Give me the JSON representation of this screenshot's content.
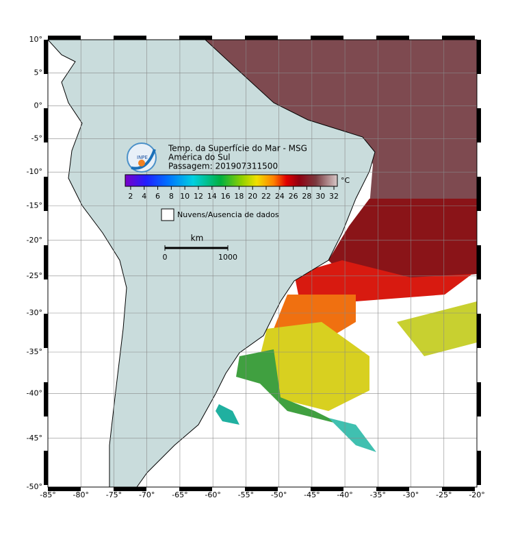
{
  "map": {
    "title_lines": [
      "Temp. da Superfície do Mar - MSG",
      "América do Sul",
      "Passagem: 201907311500"
    ],
    "logo": "INPE",
    "lon_range": [
      -85,
      -20
    ],
    "lat_range": [
      10,
      -50
    ],
    "lon_ticks": [
      {
        "value": -85,
        "label": "-85°"
      },
      {
        "value": -80,
        "label": "-80°"
      },
      {
        "value": -75,
        "label": "-75°"
      },
      {
        "value": -70,
        "label": "-70°"
      },
      {
        "value": -65,
        "label": "-65°"
      },
      {
        "value": -60,
        "label": "-60°"
      },
      {
        "value": -55,
        "label": "-55°"
      },
      {
        "value": -50,
        "label": "-50°"
      },
      {
        "value": -45,
        "label": "-45°"
      },
      {
        "value": -40,
        "label": "-40°"
      },
      {
        "value": -35,
        "label": "-35°"
      },
      {
        "value": -30,
        "label": "-30°"
      },
      {
        "value": -25,
        "label": "-25°"
      },
      {
        "value": -20,
        "label": "-20°"
      }
    ],
    "lat_ticks": [
      {
        "value": 10,
        "label": "10°"
      },
      {
        "value": 5,
        "label": "5°"
      },
      {
        "value": 0,
        "label": "0°"
      },
      {
        "value": -5,
        "label": "-5°"
      },
      {
        "value": -10,
        "label": "-10°"
      },
      {
        "value": -15,
        "label": "-15°"
      },
      {
        "value": -20,
        "label": "-20°"
      },
      {
        "value": -25,
        "label": "-25°"
      },
      {
        "value": -30,
        "label": "-30°"
      },
      {
        "value": -35,
        "label": "-35°"
      },
      {
        "value": -40,
        "label": "-40°"
      },
      {
        "value": -45,
        "label": "-45°"
      },
      {
        "value": -50,
        "label": "-50°"
      }
    ]
  },
  "colorbar": {
    "range": [
      1.2,
      32.5
    ],
    "ticks": [
      2,
      4,
      6,
      8,
      10,
      12,
      14,
      16,
      18,
      20,
      22,
      24,
      26,
      28,
      30,
      32
    ],
    "unit": "°C"
  },
  "legend": {
    "label": "Nuvens/Ausencia de dados"
  },
  "scalebar": {
    "unit": "km",
    "start": "0",
    "end": "1000"
  }
}
